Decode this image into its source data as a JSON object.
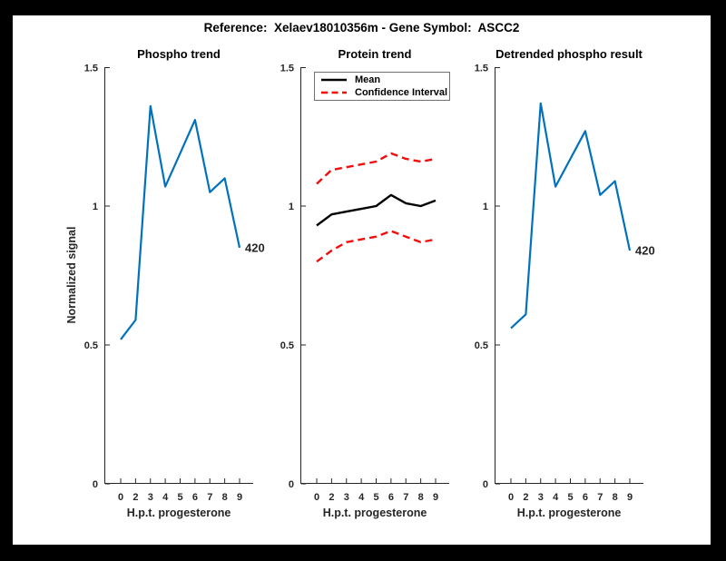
{
  "figure": {
    "title": "Reference:  Xelaev18010356m - Gene Symbol:  ASCC2",
    "frame_color": "#000000",
    "canvas_color": "#ffffff"
  },
  "axis_style": {
    "color": "#262626",
    "tick_length": 5,
    "tick_label_size": 11
  },
  "colors": {
    "blue": "#0072BD",
    "red": "#f20d0d",
    "black": "#000000"
  },
  "chart_data": [
    {
      "type": "line",
      "title": "Phospho trend",
      "xlabel": "H.p.t. progesterone",
      "ylabel": "Normalized signal",
      "x_tick_labels": [
        "0",
        "2",
        "3",
        "4",
        "5",
        "6",
        "7",
        "8",
        "9"
      ],
      "y_ticks": [
        0,
        0.5,
        1,
        1.5
      ],
      "y_tick_labels": [
        "0",
        "0.5",
        "1",
        "1.5"
      ],
      "ylim": [
        0,
        1.5
      ],
      "grid": false,
      "series": [
        {
          "name": "phospho-signal",
          "color_key": "blue",
          "style": "solid",
          "width": 2.2,
          "values": [
            0.52,
            0.59,
            1.36,
            1.07,
            1.19,
            1.31,
            1.05,
            1.1,
            0.85
          ]
        }
      ],
      "annotation": {
        "text": "420"
      }
    },
    {
      "type": "line",
      "title": "Protein trend",
      "xlabel": "H.p.t. progesterone",
      "ylabel": "",
      "x_tick_labels": [
        "0",
        "2",
        "3",
        "4",
        "5",
        "6",
        "7",
        "8",
        "9"
      ],
      "y_ticks": [
        0,
        0.5,
        1,
        1.5
      ],
      "y_tick_labels": [
        "0",
        "0.5",
        "1",
        "1.5"
      ],
      "ylim": [
        0,
        1.5
      ],
      "grid": false,
      "legend": [
        {
          "label": "Mean",
          "color_key": "black",
          "style": "solid"
        },
        {
          "label": "Confidence Interval",
          "color_key": "red",
          "style": "dashed"
        }
      ],
      "legend_position": "top-left",
      "series": [
        {
          "name": "mean",
          "color_key": "black",
          "style": "solid",
          "width": 2.4,
          "values": [
            0.93,
            0.97,
            0.98,
            0.99,
            1.0,
            1.04,
            1.01,
            1.0,
            1.02
          ]
        },
        {
          "name": "confidence-upper",
          "color_key": "red",
          "style": "dashed",
          "width": 2.4,
          "values": [
            1.08,
            1.13,
            1.14,
            1.15,
            1.16,
            1.19,
            1.17,
            1.16,
            1.17
          ]
        },
        {
          "name": "confidence-lower",
          "color_key": "red",
          "style": "dashed",
          "width": 2.4,
          "values": [
            0.8,
            0.84,
            0.87,
            0.88,
            0.89,
            0.91,
            0.89,
            0.87,
            0.88
          ]
        }
      ]
    },
    {
      "type": "line",
      "title": "Detrended phospho result",
      "xlabel": "H.p.t. progesterone",
      "ylabel": "",
      "x_tick_labels": [
        "0",
        "2",
        "3",
        "4",
        "5",
        "6",
        "7",
        "8",
        "9"
      ],
      "y_ticks": [
        0,
        0.5,
        1,
        1.5
      ],
      "y_tick_labels": [
        "0",
        "0.5",
        "1",
        "1.5"
      ],
      "ylim": [
        0,
        1.5
      ],
      "grid": false,
      "series": [
        {
          "name": "detrended-phospho-signal",
          "color_key": "blue",
          "style": "solid",
          "width": 2.2,
          "values": [
            0.56,
            0.61,
            1.37,
            1.07,
            1.17,
            1.27,
            1.04,
            1.09,
            0.84
          ]
        }
      ],
      "annotation": {
        "text": "420"
      }
    }
  ]
}
